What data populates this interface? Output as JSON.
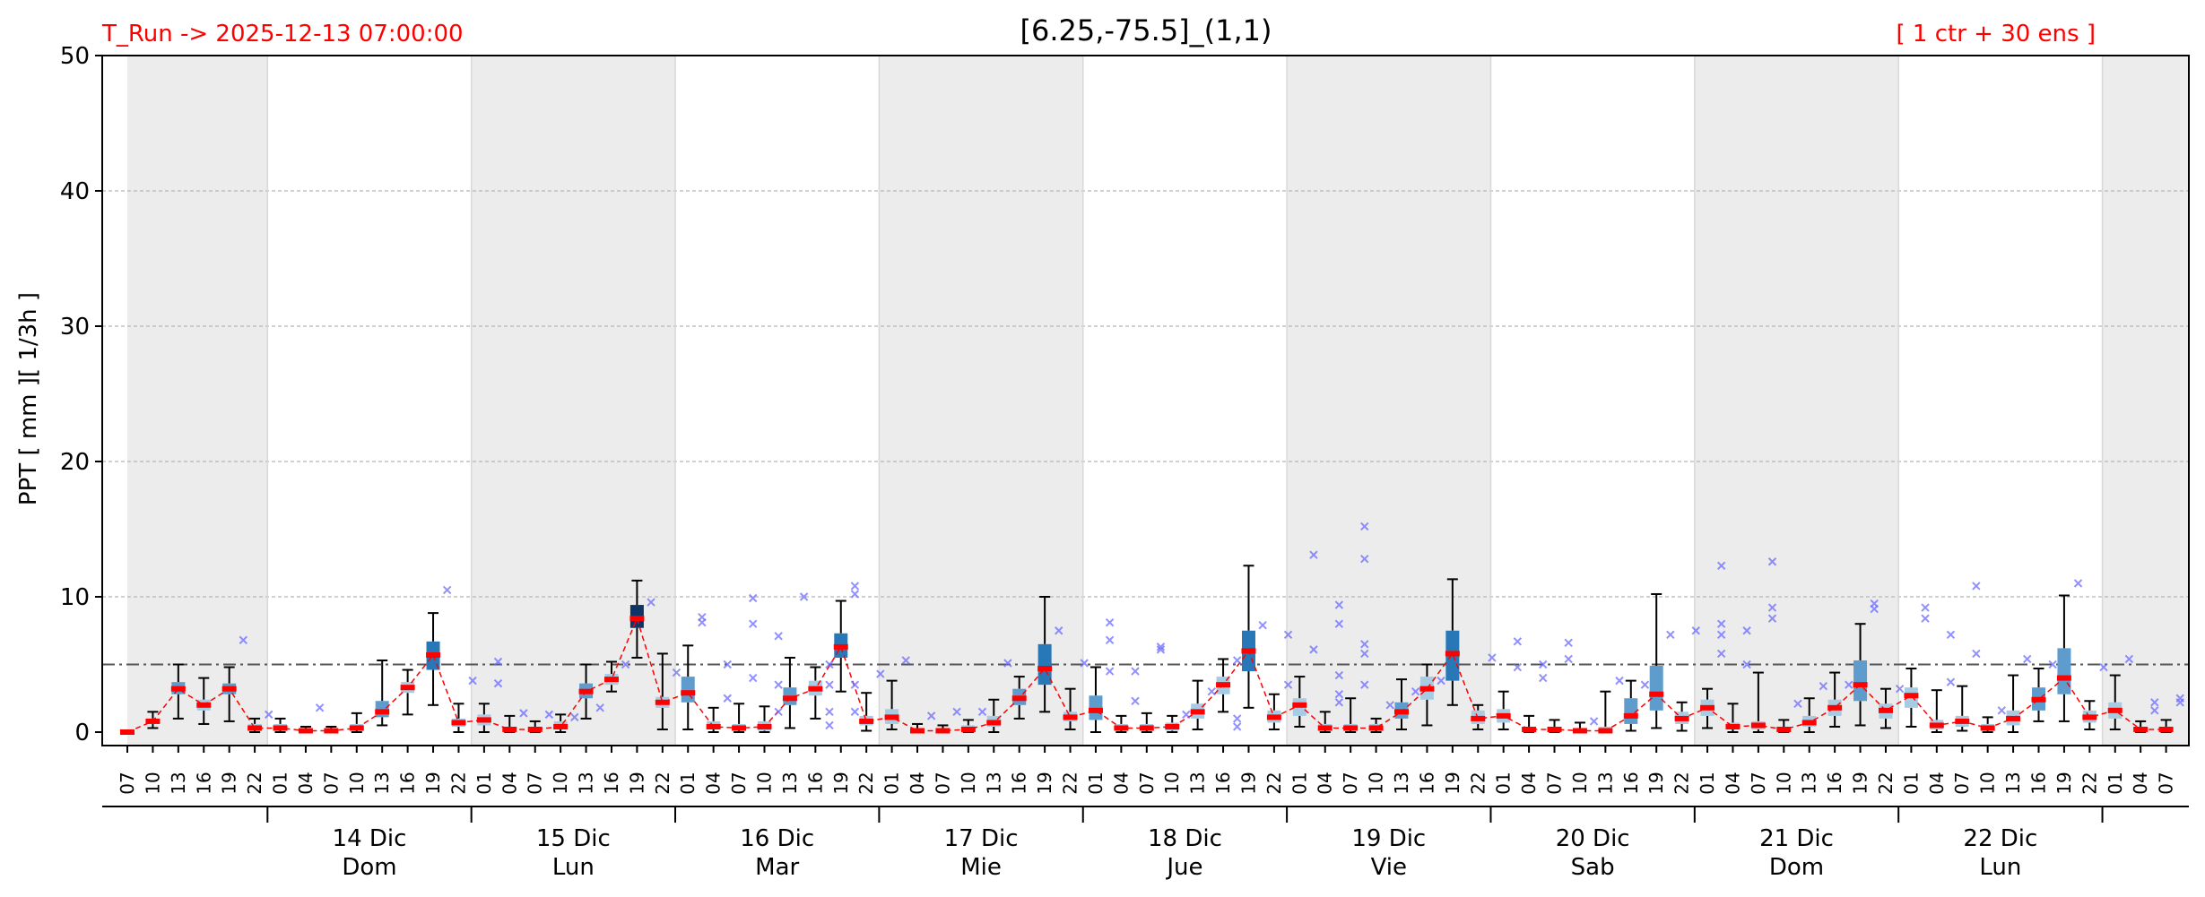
{
  "header": {
    "run_label": "T_Run -> 2025-12-13  07:00:00",
    "title": "[6.25,-75.5]_(1,1)",
    "members_label": "[ 1 ctr + 30 ens ]"
  },
  "chart_data": {
    "type": "box",
    "ylabel": "PPT  [ mm ][ 1/3h ]",
    "ylim": [
      0,
      50
    ],
    "yticks": [
      0,
      10,
      20,
      30,
      40,
      50
    ],
    "grid": true,
    "threshold": 5,
    "hours": [
      "07",
      "10",
      "13",
      "16",
      "19",
      "22",
      "01",
      "04",
      "07",
      "10",
      "13",
      "16",
      "19",
      "22",
      "01",
      "04",
      "07",
      "10",
      "13",
      "16",
      "19",
      "22",
      "01",
      "04",
      "07",
      "10",
      "13",
      "16",
      "19",
      "22",
      "01",
      "04",
      "07",
      "10",
      "13",
      "16",
      "19",
      "22",
      "01",
      "04",
      "07",
      "10",
      "13",
      "16",
      "19",
      "22",
      "01",
      "04",
      "07",
      "10",
      "13",
      "16",
      "19",
      "22",
      "01",
      "04",
      "07",
      "10",
      "13",
      "16",
      "19",
      "22",
      "01",
      "04",
      "07",
      "10",
      "13",
      "16",
      "19",
      "22",
      "01",
      "04",
      "07",
      "10",
      "13",
      "16",
      "19",
      "22",
      "01",
      "04",
      "07"
    ],
    "days": [
      {
        "date": "",
        "weekday": ""
      },
      {
        "date": "14 Dic",
        "weekday": "Dom"
      },
      {
        "date": "15 Dic",
        "weekday": "Lun"
      },
      {
        "date": "16 Dic",
        "weekday": "Mar"
      },
      {
        "date": "17 Dic",
        "weekday": "Mie"
      },
      {
        "date": "18 Dic",
        "weekday": "Jue"
      },
      {
        "date": "19 Dic",
        "weekday": "Vie"
      },
      {
        "date": "20 Dic",
        "weekday": "Sab"
      },
      {
        "date": "21 Dic",
        "weekday": "Dom"
      },
      {
        "date": "22 Dic",
        "weekday": "Lun"
      },
      {
        "date": "",
        "weekday": ""
      }
    ],
    "series": [
      {
        "median": [
          0,
          0.8,
          3.2,
          2,
          3.2,
          0.3,
          0.3,
          0.1,
          0.1,
          0.3,
          1.5,
          3.3,
          5.7,
          0.7,
          0.9,
          0.2,
          0.2,
          0.4,
          3,
          3.9,
          8.4,
          2.2,
          2.9,
          0.4,
          0.3,
          0.4,
          2.5,
          3.2,
          6.3,
          0.8,
          1.1,
          0.1,
          0.1,
          0.2,
          0.7,
          2.5,
          4.7,
          1.1,
          1.6,
          0.3,
          0.3,
          0.4,
          1.5,
          3.5,
          6,
          1.1,
          2,
          0.3,
          0.3,
          0.3,
          1.5,
          3.2,
          5.8,
          1,
          1.2,
          0.2,
          0.2,
          0.1,
          0.1,
          1.2,
          2.8,
          1,
          1.8,
          0.4,
          0.5,
          0.2,
          0.7,
          1.8,
          3.5,
          1.6,
          2.7,
          0.5,
          0.8,
          0.3,
          1,
          2.4,
          4,
          1.1,
          1.6,
          0.2,
          0.2
        ]
      },
      {
        "q1": [
          0,
          0.6,
          2.8,
          1.6,
          2.8,
          0.1,
          0.1,
          0,
          0,
          0.1,
          1.1,
          2.9,
          4.6,
          0.4,
          0.5,
          0.1,
          0.1,
          0.2,
          2.5,
          3.5,
          7.7,
          1.8,
          2.2,
          0.2,
          0.1,
          0.1,
          2,
          2.7,
          5.5,
          0.5,
          0.6,
          0,
          0,
          0.1,
          0.4,
          2,
          3.5,
          0.8,
          0.9,
          0.1,
          0.1,
          0.1,
          1,
          2.8,
          4.5,
          0.7,
          1.2,
          0.1,
          0.1,
          0.1,
          1,
          2.4,
          3.8,
          0.6,
          0.7,
          0.1,
          0.1,
          0,
          0,
          0.6,
          1.6,
          0.6,
          1.2,
          0.2,
          0.2,
          0.1,
          0.4,
          1.2,
          2.3,
          1,
          1.8,
          0.2,
          0.4,
          0.1,
          0.5,
          1.6,
          2.8,
          0.7,
          1,
          0.1,
          0.1
        ]
      },
      {
        "q3": [
          0.1,
          1,
          3.7,
          2.4,
          3.6,
          0.6,
          0.6,
          0.3,
          0.3,
          0.6,
          2.3,
          3.7,
          6.7,
          1,
          1.3,
          0.4,
          0.4,
          0.8,
          3.6,
          4.3,
          9.4,
          2.6,
          4.1,
          0.8,
          0.6,
          0.8,
          3.3,
          3.8,
          7.3,
          1.2,
          1.7,
          0.3,
          0.3,
          0.5,
          1.2,
          3.2,
          6.5,
          1.5,
          2.7,
          0.6,
          0.6,
          0.7,
          2.1,
          4.1,
          7.5,
          1.6,
          2.5,
          0.6,
          0.6,
          0.6,
          2.2,
          4.1,
          7.5,
          1.6,
          1.7,
          0.4,
          0.4,
          0.3,
          0.4,
          2.5,
          4.9,
          1.5,
          2.4,
          0.7,
          0.8,
          0.4,
          1.2,
          2.4,
          5.3,
          2.1,
          3.3,
          0.9,
          1.2,
          0.6,
          1.6,
          3.3,
          6.2,
          1.6,
          2.2,
          0.4,
          0.4
        ]
      },
      {
        "whisker_low": [
          0,
          0.3,
          1,
          0.6,
          0.8,
          0,
          0,
          0,
          0,
          0,
          0.5,
          1.3,
          2,
          0,
          0,
          0,
          0,
          0,
          1,
          3,
          5.5,
          0.2,
          0.2,
          0,
          0,
          0,
          0.3,
          1,
          3,
          0.1,
          0.2,
          0,
          0,
          0,
          0,
          1,
          1.5,
          0.2,
          0,
          0,
          0,
          0,
          0.2,
          1.5,
          1.8,
          0.2,
          0.4,
          0,
          0,
          0,
          0.2,
          0.5,
          2,
          0.2,
          0.2,
          0,
          0,
          0,
          0,
          0.1,
          0.3,
          0.1,
          0.3,
          0,
          0,
          0,
          0,
          0.4,
          0.5,
          0.3,
          0.4,
          0,
          0.1,
          0,
          0,
          0.8,
          0.8,
          0.2,
          0.2,
          0,
          0
        ]
      },
      {
        "whisker_high": [
          0.1,
          1.5,
          5,
          4,
          4.8,
          1,
          1,
          0.4,
          0.4,
          1.4,
          5.3,
          4.6,
          8.8,
          2.1,
          2.1,
          1.2,
          0.8,
          1.3,
          5,
          5.2,
          11.2,
          5.8,
          6.4,
          1.8,
          2.1,
          1.9,
          5.5,
          4.8,
          9.7,
          2.9,
          3.8,
          0.6,
          0.5,
          0.9,
          2.4,
          4.1,
          10,
          3.2,
          4.8,
          1.2,
          1.4,
          1.2,
          3.8,
          5.4,
          12.3,
          2.8,
          4.1,
          1.5,
          2.5,
          1,
          3.9,
          5,
          11.3,
          2,
          3,
          1.2,
          0.9,
          0.7,
          3,
          3.8,
          10.2,
          2.2,
          3.2,
          2.1,
          4.4,
          0.9,
          2.5,
          4.4,
          8,
          3.2,
          4.7,
          3.1,
          3.4,
          1.1,
          4.2,
          4.7,
          10.1,
          2.3,
          4.2,
          0.8,
          0.9
        ]
      },
      {
        "box_shade": [
          "n",
          "n",
          "m",
          "n",
          "m",
          "n",
          "n",
          "n",
          "n",
          "n",
          "m",
          "n",
          "d",
          "n",
          "n",
          "n",
          "n",
          "n",
          "m",
          "n",
          "k",
          "n",
          "m",
          "n",
          "n",
          "n",
          "m",
          "n",
          "d",
          "n",
          "n",
          "n",
          "n",
          "n",
          "n",
          "m",
          "d",
          "n",
          "m",
          "n",
          "n",
          "n",
          "n",
          "n",
          "d",
          "n",
          "n",
          "n",
          "n",
          "n",
          "m",
          "n",
          "d",
          "n",
          "n",
          "n",
          "n",
          "n",
          "n",
          "m",
          "m",
          "n",
          "n",
          "n",
          "n",
          "n",
          "n",
          "n",
          "m",
          "n",
          "n",
          "n",
          "n",
          "n",
          "n",
          "m",
          "m",
          "n",
          "n",
          "n",
          "n"
        ]
      }
    ],
    "outliers": [
      [
        4,
        6.8
      ],
      [
        5,
        1.3
      ],
      [
        7,
        1.8
      ],
      [
        12,
        10.5
      ],
      [
        13,
        3.8
      ],
      [
        14,
        5.2
      ],
      [
        14,
        3.6
      ],
      [
        15,
        1.4
      ],
      [
        16,
        1.3
      ],
      [
        17,
        1.1
      ],
      [
        18,
        1.8
      ],
      [
        19,
        5
      ],
      [
        20,
        9.6
      ],
      [
        21,
        4.4
      ],
      [
        22,
        8.5
      ],
      [
        22,
        8.1
      ],
      [
        23,
        5
      ],
      [
        23,
        2.5
      ],
      [
        24,
        9.9
      ],
      [
        24,
        8
      ],
      [
        24,
        4
      ],
      [
        25,
        7.1
      ],
      [
        25,
        3.5
      ],
      [
        25,
        1.5
      ],
      [
        26,
        10
      ],
      [
        27,
        5
      ],
      [
        27,
        3.5
      ],
      [
        27,
        1.5
      ],
      [
        27,
        0.5
      ],
      [
        28,
        10.8
      ],
      [
        28,
        10.2
      ],
      [
        28,
        3.5
      ],
      [
        28,
        1.5
      ],
      [
        29,
        4.3
      ],
      [
        30,
        5.3
      ],
      [
        31,
        1.2
      ],
      [
        32,
        1.5
      ],
      [
        33,
        1.5
      ],
      [
        34,
        5.1
      ],
      [
        36,
        7.5
      ],
      [
        37,
        5.1
      ],
      [
        38,
        8.1
      ],
      [
        38,
        6.8
      ],
      [
        38,
        4.5
      ],
      [
        39,
        4.5
      ],
      [
        39,
        2.3
      ],
      [
        40,
        6.3
      ],
      [
        40,
        6.1
      ],
      [
        41,
        1.3
      ],
      [
        42,
        3
      ],
      [
        43,
        5.3
      ],
      [
        43,
        1
      ],
      [
        43,
        0.4
      ],
      [
        44,
        7.9
      ],
      [
        45,
        7.2
      ],
      [
        45,
        3.5
      ],
      [
        46,
        13.1
      ],
      [
        46,
        6.1
      ],
      [
        47,
        9.4
      ],
      [
        47,
        8
      ],
      [
        47,
        4.2
      ],
      [
        47,
        2.8
      ],
      [
        47,
        2.2
      ],
      [
        48,
        15.2
      ],
      [
        48,
        12.8
      ],
      [
        48,
        6.5
      ],
      [
        48,
        5.8
      ],
      [
        48,
        3.5
      ],
      [
        49,
        2
      ],
      [
        50,
        3
      ],
      [
        51,
        3.8
      ],
      [
        53,
        5.5
      ],
      [
        54,
        6.7
      ],
      [
        54,
        4.8
      ],
      [
        55,
        5
      ],
      [
        55,
        4
      ],
      [
        56,
        6.6
      ],
      [
        56,
        5.4
      ],
      [
        57,
        0.8
      ],
      [
        58,
        3.8
      ],
      [
        59,
        3.5
      ],
      [
        60,
        7.2
      ],
      [
        61,
        7.5
      ],
      [
        62,
        12.3
      ],
      [
        62,
        8
      ],
      [
        62,
        7.2
      ],
      [
        62,
        5.8
      ],
      [
        63,
        7.5
      ],
      [
        63,
        5
      ],
      [
        64,
        12.6
      ],
      [
        64,
        9.2
      ],
      [
        64,
        8.4
      ],
      [
        65,
        2.1
      ],
      [
        66,
        3.4
      ],
      [
        67,
        3.5
      ],
      [
        68,
        9.5
      ],
      [
        68,
        9.1
      ],
      [
        69,
        3.2
      ],
      [
        70,
        9.2
      ],
      [
        70,
        8.4
      ],
      [
        71,
        7.2
      ],
      [
        71,
        3.7
      ],
      [
        72,
        10.8
      ],
      [
        72,
        5.8
      ],
      [
        73,
        1.6
      ],
      [
        74,
        5.4
      ],
      [
        75,
        5
      ],
      [
        76,
        11
      ],
      [
        77,
        4.8
      ],
      [
        78,
        5.4
      ],
      [
        79,
        2.2
      ],
      [
        79,
        1.6
      ],
      [
        80,
        2.5
      ],
      [
        80,
        2.2
      ]
    ],
    "colors": {
      "box_light": "#a6cbe3",
      "box_mid": "#5d9ccc",
      "box_dark": "#2878b8",
      "box_darkest": "#0e3565",
      "median": "#ff0000",
      "median_line": "#ff0000",
      "outlier": "#6b6bff",
      "band": "#ececec",
      "threshold": "#555555"
    }
  }
}
